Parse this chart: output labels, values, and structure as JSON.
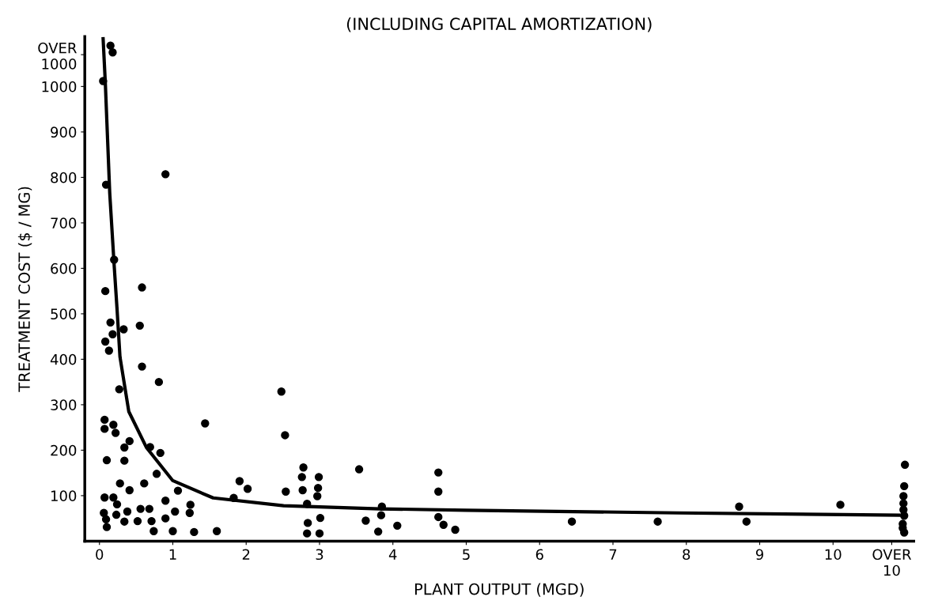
{
  "chart_data": {
    "type": "scatter",
    "title": "(INCLUDING CAPITAL AMORTIZATION)",
    "xlabel": "PLANT OUTPUT (MGD)",
    "ylabel": "TREATMENT COST ($ / MG)",
    "xlim": [
      -0.2,
      11.1
    ],
    "ylim": [
      0,
      1110
    ],
    "xticks": [
      0,
      1,
      2,
      3,
      4,
      5,
      6,
      7,
      8,
      9,
      10,
      {
        "value": 10.8,
        "label": "OVER\n10"
      }
    ],
    "yticks": [
      100,
      200,
      300,
      400,
      500,
      600,
      700,
      800,
      900,
      1000,
      {
        "value": 1070,
        "label": "OVER\n1000"
      }
    ],
    "grid": false,
    "legend": false,
    "marker": "circle",
    "series": [
      {
        "color": "#000000",
        "x": [
          0.15,
          0.18,
          0.05,
          0.09,
          0.2,
          0.9,
          0.08,
          0.58,
          0.15,
          0.18,
          0.08,
          0.13,
          0.33,
          0.55,
          0.58,
          0.81,
          0.27,
          2.48,
          1.44,
          2.53,
          0.07,
          0.07,
          0.19,
          0.22,
          0.41,
          0.34,
          0.69,
          0.83,
          0.1,
          0.34,
          0.78,
          2.78,
          2.76,
          2.99,
          3.54,
          4.62,
          0.28,
          0.61,
          0.41,
          1.07,
          1.91,
          2.02,
          2.54,
          2.77,
          2.98,
          4.62,
          0.07,
          0.19,
          0.24,
          0.9,
          1.24,
          1.83,
          2.83,
          2.97,
          3.85,
          0.06,
          0.38,
          0.56,
          0.68,
          1.03,
          1.23,
          3.84,
          0.09,
          0.23,
          0.34,
          0.52,
          0.71,
          0.9,
          3.01,
          3.63,
          4.62,
          0.1,
          2.84,
          4.06,
          4.69,
          4.85,
          0.74,
          1.0,
          1.29,
          1.6,
          2.83,
          3.0,
          3.8,
          6.44,
          7.61,
          8.72,
          8.82,
          10.1,
          10.98,
          10.97,
          10.96,
          10.96,
          10.96,
          10.97,
          10.95,
          10.95,
          10.97
        ],
        "values": [
          1090,
          1075,
          1012,
          784,
          619,
          807,
          550,
          558,
          481,
          455,
          439,
          419,
          466,
          474,
          384,
          350,
          334,
          329,
          259,
          233,
          267,
          247,
          256,
          238,
          220,
          206,
          207,
          194,
          178,
          177,
          148,
          162,
          141,
          141,
          158,
          151,
          127,
          127,
          112,
          111,
          132,
          115,
          109,
          112,
          117,
          109,
          96,
          96,
          81,
          89,
          80,
          95,
          82,
          99,
          76,
          62,
          65,
          71,
          71,
          65,
          62,
          57,
          48,
          58,
          43,
          44,
          44,
          50,
          51,
          45,
          53,
          31,
          40,
          34,
          36,
          25,
          22,
          22,
          20,
          22,
          17,
          17,
          21,
          43,
          43,
          76,
          43,
          80,
          168,
          121,
          99,
          83,
          69,
          56,
          38,
          29,
          19
        ]
      },
      {
        "type": "line",
        "color": "#000000",
        "marker": "none",
        "x": [
          0.05,
          0.08,
          0.14,
          0.2,
          0.24,
          0.28,
          0.4,
          0.64,
          1.0,
          1.55,
          2.51,
          3.82,
          5.0,
          7.9,
          10.9
        ],
        "values": [
          1105,
          1008,
          766,
          608,
          510,
          405,
          285,
          206,
          133,
          95,
          78,
          71,
          68,
          62,
          57
        ]
      }
    ]
  }
}
